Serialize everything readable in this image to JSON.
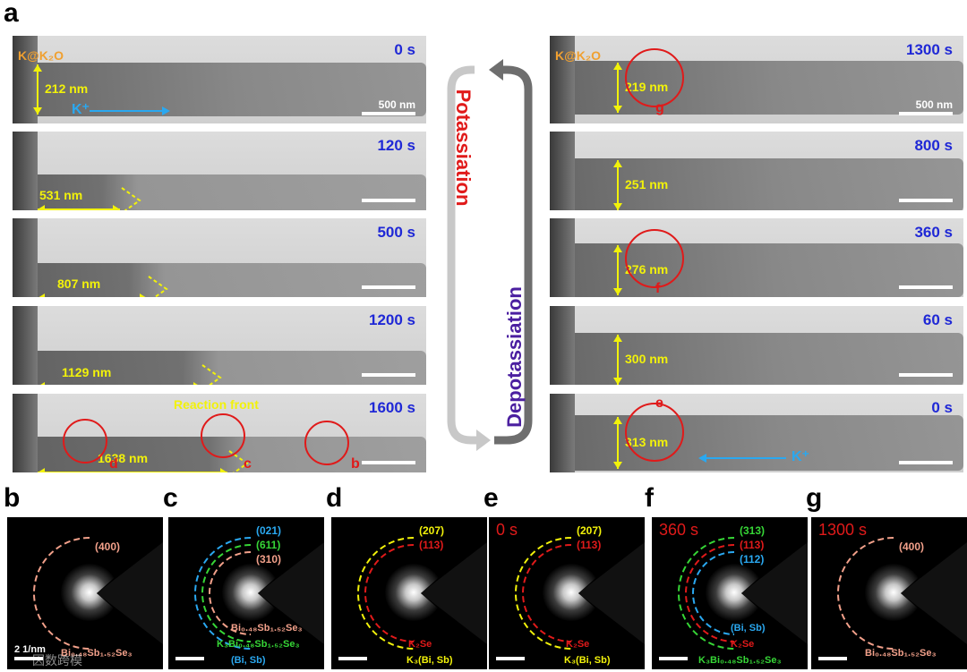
{
  "panel_labels": {
    "a": "a",
    "b": "b",
    "c": "c",
    "d": "d",
    "e": "e",
    "f": "f",
    "g": "g"
  },
  "left_frames": [
    {
      "time": "0 s",
      "measure": "212 nm",
      "corner": "K@K₂O",
      "ion": "K⁺",
      "scale": "500 nm"
    },
    {
      "time": "120 s",
      "measure": "531 nm"
    },
    {
      "time": "500 s",
      "measure": "807 nm"
    },
    {
      "time": "1200 s",
      "measure": "1129 nm"
    },
    {
      "time": "1600 s",
      "measure": "1638 nm",
      "front": "Reaction front",
      "marks": [
        "d",
        "c",
        "b"
      ]
    }
  ],
  "right_frames": [
    {
      "time": "1300 s",
      "measure": "219 nm",
      "corner": "K@K₂O",
      "scale": "500 nm",
      "mark": "g"
    },
    {
      "time": "800 s",
      "measure": "251 nm"
    },
    {
      "time": "360 s",
      "measure": "276 nm",
      "mark": "f"
    },
    {
      "time": "60 s",
      "measure": "300 nm"
    },
    {
      "time": "0 s",
      "measure": "313 nm",
      "mark": "e",
      "ion": "K⁺"
    }
  ],
  "arrows": {
    "potassiation": "Potassiation",
    "depotassiation": "Depotassiation"
  },
  "saed": {
    "b": {
      "rings": [
        "(400)"
      ],
      "phase": "Bi₀.₄₈Sb₁.₅₂Se₃",
      "scale": "2 1/nm",
      "watermark": "因数跨模"
    },
    "c": {
      "rings": [
        "(021)",
        "(611)",
        "(310)"
      ],
      "phases": [
        "Bi₀.₄₈Sb₁.₅₂Se₃",
        "K₃Bi₀.₄₈Sb₁.₅₂Se₃",
        "(Bi, Sb)"
      ]
    },
    "d": {
      "rings": [
        "(207)",
        "(113)"
      ],
      "phases": [
        "K₂Se",
        "K₃(Bi, Sb)"
      ]
    },
    "e": {
      "time": "0 s",
      "rings": [
        "(207)",
        "(113)"
      ],
      "phases": [
        "K₂Se",
        "K₃(Bi, Sb)"
      ]
    },
    "f": {
      "time": "360 s",
      "rings": [
        "(313)",
        "(113)",
        "(112)"
      ],
      "phases": [
        "(Bi, Sb)",
        "K₂Se",
        "K₃Bi₀.₄₈Sb₁.₅₂Se₃"
      ]
    },
    "g": {
      "time": "1300 s",
      "rings": [
        "(400)"
      ],
      "phase": "Bi₀.₄₈Sb₁.₅₂Se₃"
    }
  },
  "colors": {
    "time": "#1f28d6",
    "measure": "#f2f20a",
    "mark": "#e01a1a",
    "k_arrow": "#2aa8f0"
  }
}
